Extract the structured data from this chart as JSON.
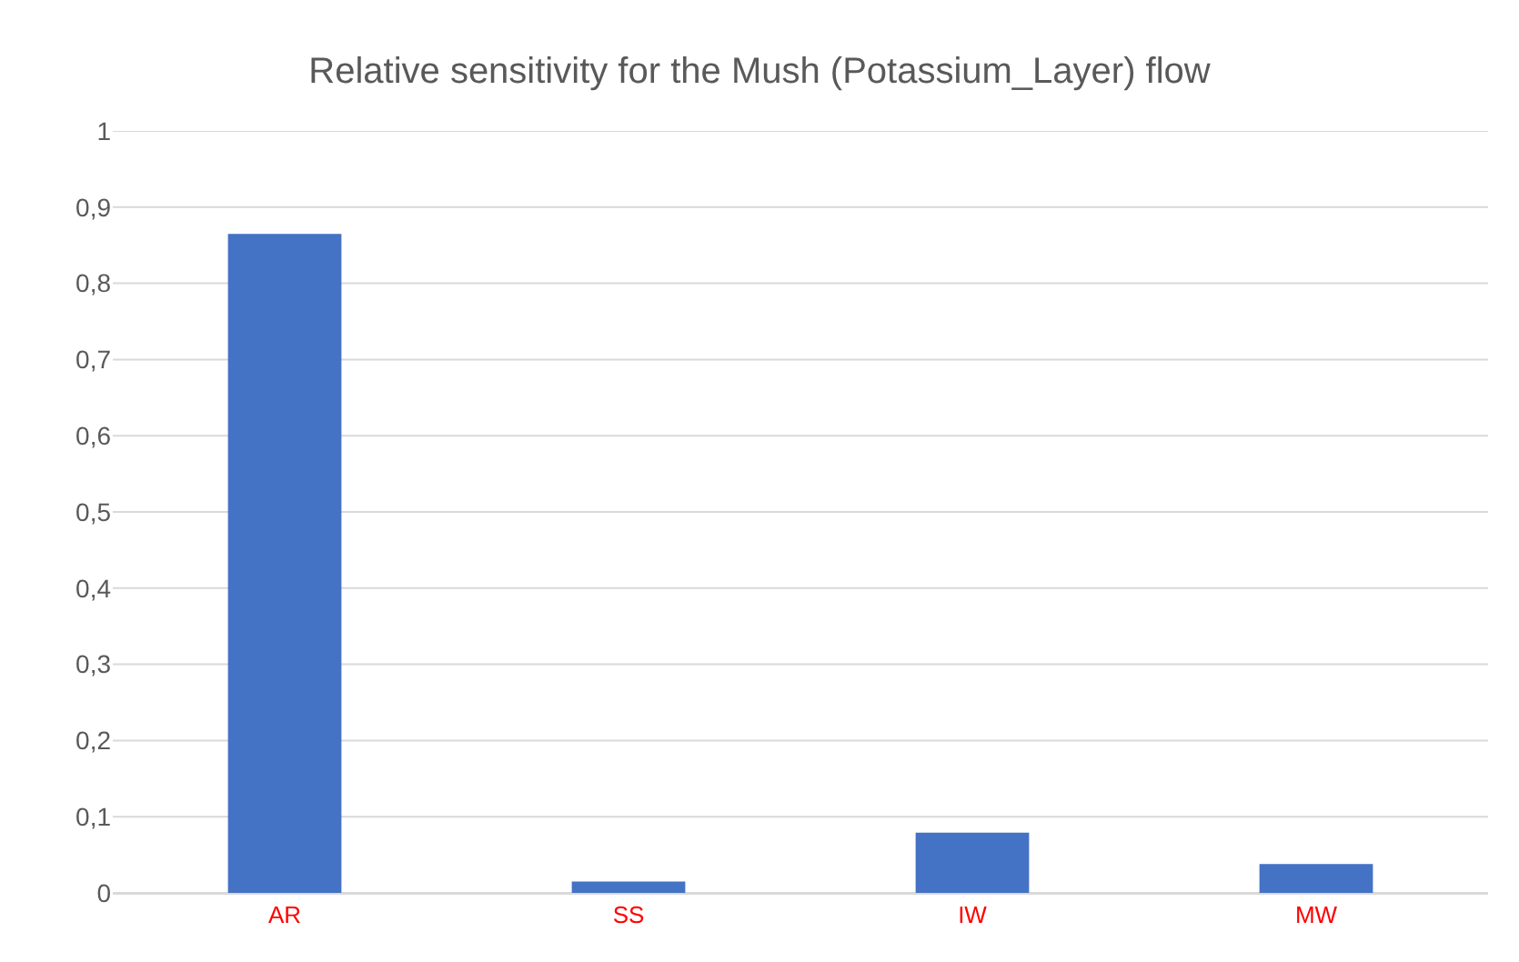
{
  "chart_data": {
    "type": "bar",
    "title": "Relative sensitivity for the Mush (Potassium_Layer) flow",
    "categories": [
      "AR",
      "SS",
      "IW",
      "MW"
    ],
    "values": [
      0.865,
      0.015,
      0.079,
      0.038
    ],
    "color": "#4472c4",
    "ylim": [
      0,
      1
    ],
    "yticks": [
      {
        "value": 0,
        "label": "0"
      },
      {
        "value": 0.1,
        "label": "0,1"
      },
      {
        "value": 0.2,
        "label": "0,2"
      },
      {
        "value": 0.3,
        "label": "0,3"
      },
      {
        "value": 0.4,
        "label": "0,4"
      },
      {
        "value": 0.5,
        "label": "0,5"
      },
      {
        "value": 0.6,
        "label": "0,6"
      },
      {
        "value": 0.7,
        "label": "0,7"
      },
      {
        "value": 0.8,
        "label": "0,8"
      },
      {
        "value": 0.9,
        "label": "0,9"
      },
      {
        "value": 1,
        "label": "1"
      }
    ],
    "grid": "y"
  }
}
